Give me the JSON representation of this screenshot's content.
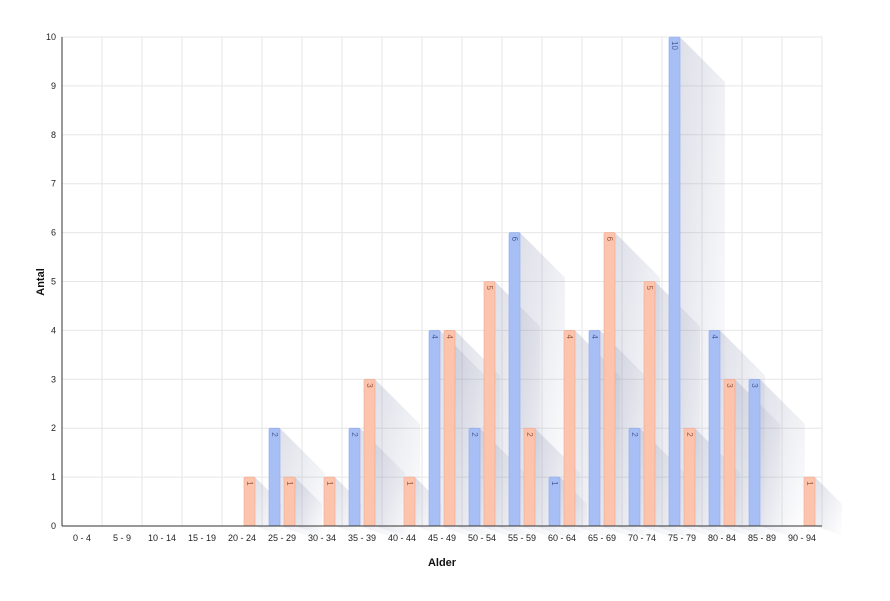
{
  "chart_data": {
    "type": "bar",
    "xlabel": "Alder",
    "ylabel": "Antal",
    "ylim": [
      0,
      10
    ],
    "yticks": [
      "0",
      "1",
      "2",
      "3",
      "4",
      "5",
      "6",
      "7",
      "8",
      "9",
      "10"
    ],
    "grid": true,
    "categories": [
      "0 - 4",
      "5 - 9",
      "10 - 14",
      "15 - 19",
      "20 - 24",
      "25 - 29",
      "30 - 34",
      "35 - 39",
      "40 - 44",
      "45 - 49",
      "50 - 54",
      "55 - 59",
      "60 - 64",
      "65 - 69",
      "70 - 74",
      "75 - 79",
      "80 - 84",
      "85 - 89",
      "90 - 94"
    ],
    "series": [
      {
        "values": [
          0,
          0,
          0,
          0,
          0,
          2,
          0,
          2,
          0,
          4,
          2,
          6,
          1,
          4,
          2,
          10,
          4,
          3,
          0
        ],
        "color": "#a8bff5",
        "border": "#8ea9ec",
        "label_color": "#4a5f9a"
      },
      {
        "values": [
          0,
          0,
          0,
          0,
          1,
          1,
          1,
          3,
          1,
          4,
          5,
          2,
          4,
          6,
          5,
          2,
          3,
          0,
          1
        ],
        "color": "#fcc3ad",
        "border": "#f0a88e",
        "label_color": "#9a5a40"
      }
    ]
  }
}
